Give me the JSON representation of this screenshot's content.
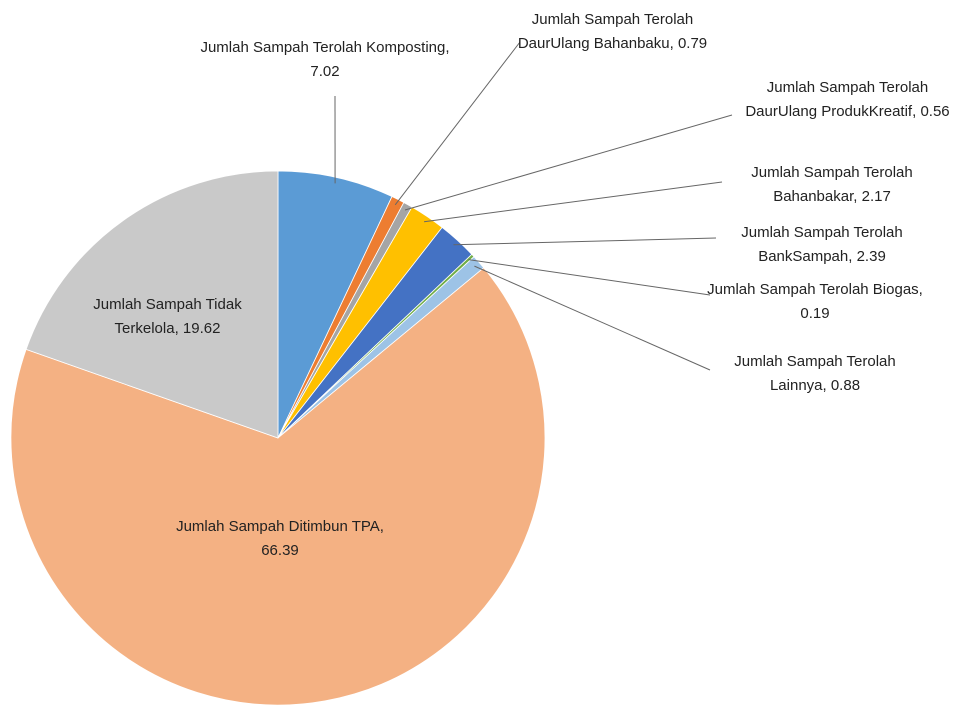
{
  "chart_data": {
    "type": "pie",
    "categories": [
      "Jumlah Sampah Terolah Komposting",
      "Jumlah Sampah Terolah DaurUlang Bahanbaku",
      "Jumlah Sampah Terolah DaurUlang ProdukKreatif",
      "Jumlah Sampah Terolah Bahanbakar",
      "Jumlah Sampah Terolah BankSampah",
      "Jumlah Sampah Terolah Biogas",
      "Jumlah Sampah Terolah Lainnya",
      "Jumlah Sampah Ditimbun TPA",
      "Jumlah Sampah Tidak Terkelola"
    ],
    "values": [
      7.02,
      0.79,
      0.56,
      2.17,
      2.39,
      0.19,
      0.88,
      66.39,
      19.62
    ],
    "colors": [
      "#5b9bd5",
      "#ed7d31",
      "#a5a5a5",
      "#ffc000",
      "#4472c4",
      "#70ad47",
      "#9dc3e6",
      "#f4b183",
      "#c9c9c9"
    ],
    "label_separator": ", "
  }
}
